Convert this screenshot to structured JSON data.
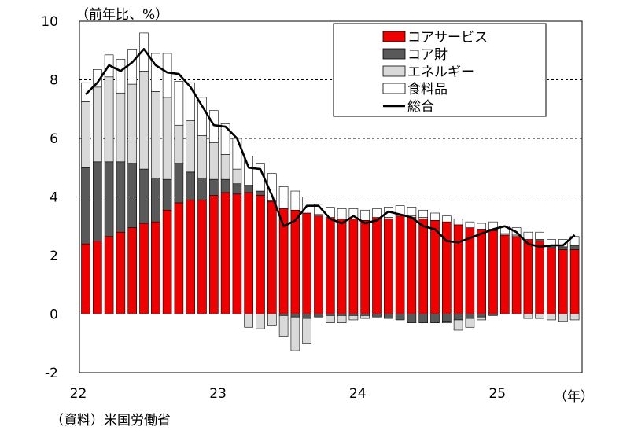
{
  "unit_label": "（前年比、%）",
  "source_label": "（資料）米国労働省",
  "x_unit_label": "（年）",
  "chart_data": {
    "type": "bar",
    "stacked": true,
    "ylim": [
      -2,
      10
    ],
    "y_ticks": [
      "10",
      "8",
      "6",
      "4",
      "2",
      "0",
      "-2"
    ],
    "x_ticks": [
      "22",
      "23",
      "24",
      "25"
    ],
    "grid": "dashed horizontal lines at 4, 6, 8",
    "legend_position": "top-right",
    "categories": [
      "2022-01",
      "2022-02",
      "2022-03",
      "2022-04",
      "2022-05",
      "2022-06",
      "2022-07",
      "2022-08",
      "2022-09",
      "2022-10",
      "2022-11",
      "2022-12",
      "2023-01",
      "2023-02",
      "2023-03",
      "2023-04",
      "2023-05",
      "2023-06",
      "2023-07",
      "2023-08",
      "2023-09",
      "2023-10",
      "2023-11",
      "2023-12",
      "2024-01",
      "2024-02",
      "2024-03",
      "2024-04",
      "2024-05",
      "2024-06",
      "2024-07",
      "2024-08",
      "2024-09",
      "2024-10",
      "2024-11",
      "2024-12",
      "2025-01",
      "2025-02",
      "2025-03",
      "2025-04",
      "2025-05",
      "2025-06",
      "2025-07"
    ],
    "series": [
      {
        "name": "コアサービス",
        "color": "#ee0000",
        "kind": "bar",
        "values": [
          2.4,
          2.5,
          2.65,
          2.8,
          2.95,
          3.1,
          3.15,
          3.55,
          3.8,
          3.9,
          3.9,
          4.05,
          4.15,
          4.1,
          4.15,
          4.05,
          3.85,
          3.6,
          3.55,
          3.45,
          3.35,
          3.3,
          3.25,
          3.25,
          3.2,
          3.3,
          3.25,
          3.35,
          3.3,
          3.25,
          3.2,
          3.15,
          3.05,
          2.95,
          2.9,
          2.85,
          2.7,
          2.65,
          2.55,
          2.5,
          2.25,
          2.2,
          2.2
        ]
      },
      {
        "name": "コア財",
        "color": "#595959",
        "kind": "bar",
        "values": [
          2.6,
          2.7,
          2.55,
          2.4,
          2.2,
          1.85,
          1.5,
          1.05,
          1.35,
          0.95,
          0.75,
          0.55,
          0.45,
          0.35,
          0.25,
          0.15,
          0.05,
          -0.05,
          -0.1,
          -0.15,
          -0.1,
          -0.05,
          -0.05,
          -0.05,
          -0.05,
          -0.1,
          -0.15,
          -0.2,
          -0.3,
          -0.3,
          -0.3,
          -0.25,
          -0.2,
          -0.15,
          -0.1,
          -0.05,
          0.0,
          0.0,
          0.0,
          0.05,
          0.05,
          0.1,
          0.15
        ]
      },
      {
        "name": "エネルギー",
        "color": "#d9d9d9",
        "kind": "bar",
        "values": [
          2.25,
          2.55,
          2.9,
          2.35,
          2.7,
          3.35,
          2.95,
          2.8,
          1.3,
          1.75,
          1.45,
          1.25,
          0.85,
          0.5,
          -0.45,
          -0.5,
          -0.4,
          -0.7,
          -1.15,
          -0.85,
          0.05,
          -0.25,
          -0.25,
          -0.15,
          -0.1,
          0.0,
          0.05,
          0.05,
          0.05,
          0.05,
          0.0,
          -0.05,
          -0.35,
          -0.3,
          -0.1,
          0.05,
          0.05,
          0.05,
          -0.15,
          -0.15,
          -0.2,
          -0.25,
          -0.2
        ]
      },
      {
        "name": "食料品",
        "color": "#ffffff",
        "kind": "bar",
        "values": [
          0.65,
          0.6,
          0.75,
          1.15,
          1.2,
          1.3,
          1.3,
          1.5,
          1.5,
          1.3,
          1.3,
          1.1,
          1.05,
          1.05,
          1.0,
          0.95,
          0.9,
          0.75,
          0.65,
          0.55,
          0.35,
          0.35,
          0.35,
          0.35,
          0.35,
          0.3,
          0.35,
          0.3,
          0.3,
          0.25,
          0.25,
          0.2,
          0.2,
          0.2,
          0.2,
          0.25,
          0.25,
          0.25,
          0.25,
          0.25,
          0.25,
          0.25,
          0.3
        ]
      },
      {
        "name": "総合",
        "color": "#000000",
        "kind": "line",
        "values": [
          7.5,
          7.9,
          8.5,
          8.3,
          8.6,
          9.05,
          8.5,
          8.25,
          8.2,
          7.75,
          7.1,
          6.45,
          6.4,
          6.0,
          5.0,
          4.95,
          4.05,
          3.0,
          3.2,
          3.7,
          3.7,
          3.25,
          3.1,
          3.35,
          3.1,
          3.2,
          3.5,
          3.4,
          3.3,
          3.0,
          2.9,
          2.5,
          2.45,
          2.6,
          2.75,
          2.9,
          3.0,
          2.8,
          2.4,
          2.3,
          2.35,
          2.35,
          2.7
        ]
      }
    ]
  }
}
